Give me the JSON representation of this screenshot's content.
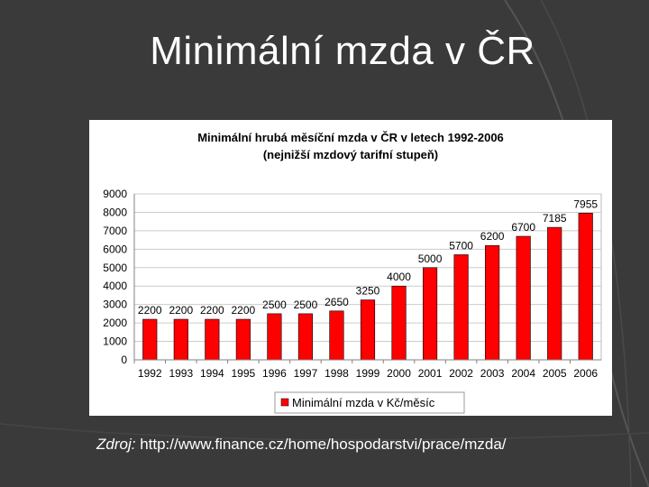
{
  "slide": {
    "title": "Minimální mzda v ČR",
    "source_label": "Zdroj:",
    "source_url": "http://www.finance.cz/home/hospodarstvi/prace/mzda/"
  },
  "chart_data": {
    "type": "bar",
    "title": "Minimální hrubá měsíční mzda v ČR v letech 1992-2006",
    "subtitle": "(nejnižší mzdový tarifní stupeň)",
    "categories": [
      "1992",
      "1993",
      "1994",
      "1995",
      "1996",
      "1997",
      "1998",
      "1999",
      "2000",
      "2001",
      "2002",
      "2003",
      "2004",
      "2005",
      "2006"
    ],
    "series": [
      {
        "name": "Minimální mzda v Kč/měsíc",
        "values": [
          2200,
          2200,
          2200,
          2200,
          2500,
          2500,
          2650,
          3250,
          4000,
          5000,
          5700,
          6200,
          6700,
          7185,
          7955
        ]
      }
    ],
    "yticks": [
      0,
      1000,
      2000,
      3000,
      4000,
      5000,
      6000,
      7000,
      8000,
      9000
    ],
    "ylim": [
      0,
      9000
    ],
    "grid": true,
    "legend_position": "bottom-center",
    "bar_color": "#ff0000"
  }
}
